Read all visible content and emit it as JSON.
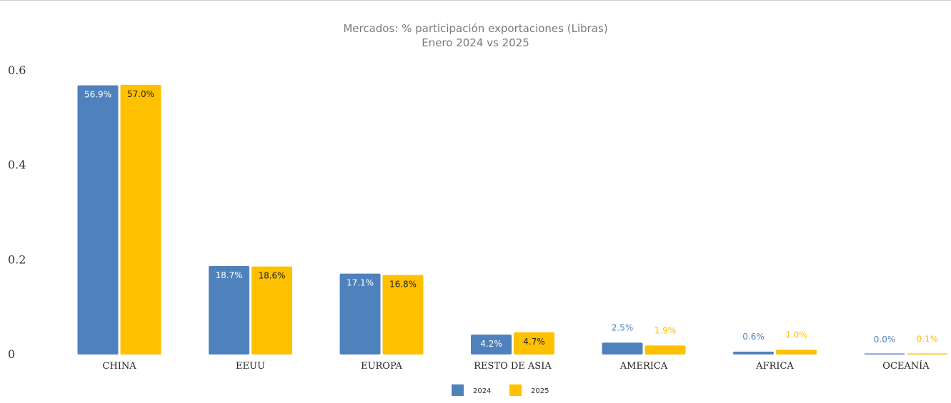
{
  "colors": {
    "s2024": "#4f81bd",
    "s2025": "#ffc000"
  },
  "chart_data": {
    "type": "bar",
    "title": "Mercados: % participación exportaciones (Libras)",
    "subtitle": "Enero 2024 vs 2025",
    "categories": [
      "CHINA",
      "EEUU",
      "EUROPA",
      "RESTO DE ASIA",
      "AMERICA",
      "AFRICA",
      "OCEANÍA"
    ],
    "series": [
      {
        "name": "2024",
        "values": [
          0.569,
          0.187,
          0.171,
          0.042,
          0.025,
          0.006,
          0.0
        ],
        "labels": [
          "56.9%",
          "18.7%",
          "17.1%",
          "4.2%",
          "2.5%",
          "0.6%",
          "0.0%"
        ]
      },
      {
        "name": "2025",
        "values": [
          0.57,
          0.186,
          0.168,
          0.047,
          0.019,
          0.01,
          0.001
        ],
        "labels": [
          "57.0%",
          "18.6%",
          "16.8%",
          "4.7%",
          "1.9%",
          "1.0%",
          "0.1%"
        ]
      }
    ],
    "yticks": [
      "0",
      "0.2",
      "0.4",
      "0.6"
    ],
    "ylim": [
      0,
      0.6
    ],
    "grid": false,
    "legend": "bottom-center"
  }
}
